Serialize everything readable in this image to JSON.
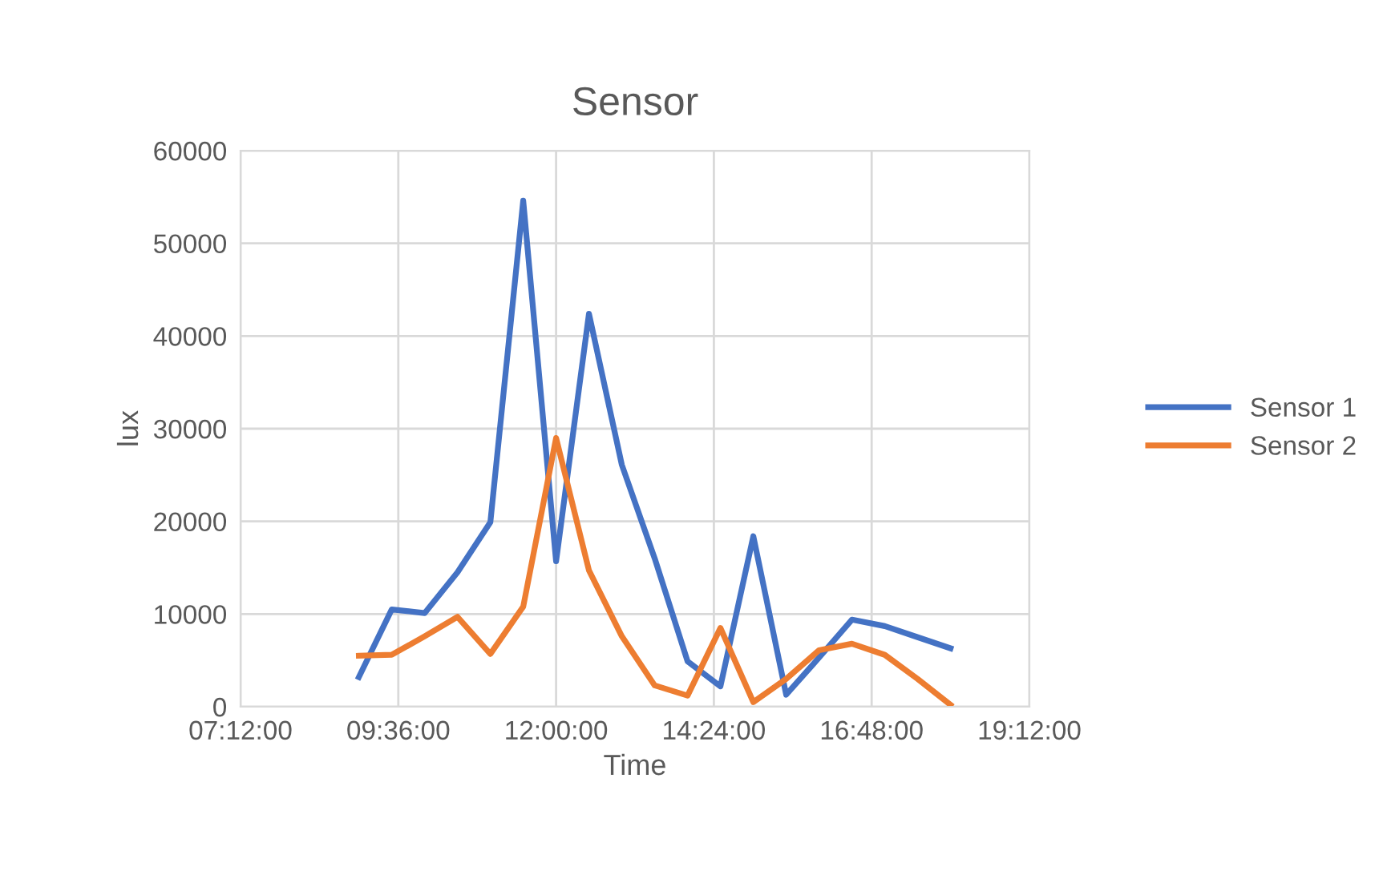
{
  "chart_data": {
    "type": "line",
    "title": "Sensor",
    "xlabel": "Time",
    "ylabel": "lux",
    "xlim": [
      7.2,
      19.2
    ],
    "xticks": [
      {
        "value": 7.2,
        "label": "07:12:00"
      },
      {
        "value": 9.6,
        "label": "09:36:00"
      },
      {
        "value": 12,
        "label": "12:00:00"
      },
      {
        "value": 14.4,
        "label": "14:24:00"
      },
      {
        "value": 16.8,
        "label": "16:48:00"
      },
      {
        "value": 19.2,
        "label": "19:12:00"
      }
    ],
    "ylim": [
      0,
      60000
    ],
    "yticks": [
      0,
      10000,
      20000,
      30000,
      40000,
      50000,
      60000
    ],
    "x": [
      9.0,
      9.5,
      10.0,
      10.5,
      11.0,
      11.5,
      12.0,
      12.5,
      13.0,
      13.5,
      14.0,
      14.5,
      15.0,
      15.5,
      16.0,
      16.5,
      17.0,
      17.5,
      18.0
    ],
    "series": [
      {
        "name": "Sensor 1",
        "color": "#4472c4",
        "values": [
          3200,
          10500,
          10100,
          14500,
          19900,
          54600,
          15700,
          42400,
          26100,
          16000,
          4900,
          2200,
          18400,
          1300,
          5300,
          9400,
          8700,
          7500,
          6300
        ]
      },
      {
        "name": "Sensor 2",
        "color": "#ed7d31",
        "values": [
          5500,
          5600,
          7600,
          9700,
          5700,
          10800,
          29000,
          14700,
          7600,
          2300,
          1200,
          8500,
          500,
          3000,
          6100,
          6800,
          5600,
          3000,
          200
        ]
      }
    ],
    "grid": true,
    "legend": "right",
    "marker": "none",
    "line_style": "solid"
  }
}
